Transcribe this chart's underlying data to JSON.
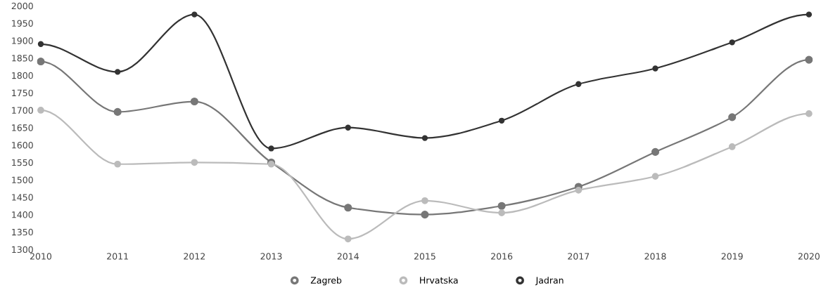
{
  "chart_data": {
    "type": "line",
    "categories": [
      "2010",
      "2011",
      "2012",
      "2013",
      "2014",
      "2015",
      "2016",
      "2017",
      "2018",
      "2019",
      "2020"
    ],
    "series": [
      {
        "name": "Zagreb",
        "color": "#777777",
        "values": [
          1840,
          1695,
          1725,
          1550,
          1420,
          1400,
          1425,
          1480,
          1580,
          1680,
          1845
        ]
      },
      {
        "name": "Hrvatska",
        "color": "#bbbbbb",
        "values": [
          1700,
          1545,
          1550,
          1545,
          1330,
          1440,
          1405,
          1470,
          1510,
          1595,
          1690
        ]
      },
      {
        "name": "Jadran",
        "color": "#333333",
        "values": [
          1890,
          1810,
          1975,
          1590,
          1650,
          1620,
          1670,
          1775,
          1820,
          1895,
          1975
        ]
      }
    ],
    "ylim": [
      1300,
      2000
    ],
    "yticks": [
      1300,
      1350,
      1400,
      1450,
      1500,
      1550,
      1600,
      1650,
      1700,
      1750,
      1800,
      1850,
      1900,
      1950,
      2000
    ],
    "grid": false,
    "legend": "bottom",
    "marker": "circle",
    "line_style": "solid"
  }
}
